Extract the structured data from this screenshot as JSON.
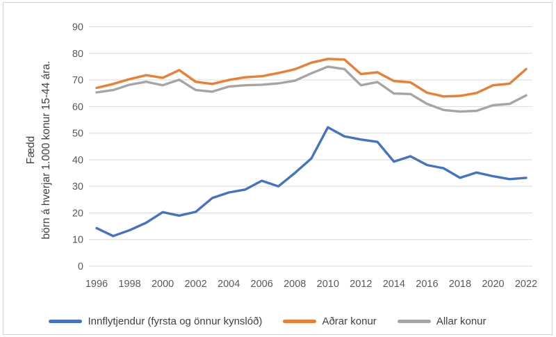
{
  "chart_data": {
    "type": "line",
    "title": "",
    "ylabel_line1": "Fædd",
    "ylabel_line2": "börn á hverjar 1.000 konur 15-44 ára.",
    "xlabel": "",
    "x": [
      1996,
      1997,
      1998,
      1999,
      2000,
      2001,
      2002,
      2003,
      2004,
      2005,
      2006,
      2007,
      2008,
      2009,
      2010,
      2011,
      2012,
      2013,
      2014,
      2015,
      2016,
      2017,
      2018,
      2019,
      2020,
      2021,
      2022
    ],
    "x_tick_labels": [
      "1996",
      "1998",
      "2000",
      "2002",
      "2004",
      "2006",
      "2008",
      "2010",
      "2012",
      "2014",
      "2016",
      "2018",
      "2020",
      "2022"
    ],
    "y_ticks": [
      0,
      10,
      20,
      30,
      40,
      50,
      60,
      70,
      80,
      90
    ],
    "ylim": [
      0,
      90
    ],
    "grid": "horizontal-only",
    "legend_position": "bottom",
    "series": [
      {
        "name": "Innflytjendur (fyrsta og önnur kynslóð)",
        "color": "#4472C4",
        "values": [
          14.3,
          11.3,
          13.5,
          16.3,
          20.3,
          19.0,
          20.4,
          25.6,
          27.7,
          28.8,
          32.1,
          30.0,
          35.0,
          40.5,
          52.2,
          48.8,
          47.6,
          46.7,
          39.3,
          41.3,
          38.0,
          36.8,
          33.2,
          35.2,
          33.8,
          32.7,
          33.2
        ]
      },
      {
        "name": "Aðrar konur",
        "color": "#ED7D31",
        "values": [
          67.0,
          68.5,
          70.3,
          71.8,
          70.8,
          73.7,
          69.3,
          68.5,
          70.0,
          71.0,
          71.4,
          72.6,
          74.0,
          76.5,
          77.9,
          77.7,
          72.2,
          72.9,
          69.6,
          69.1,
          65.2,
          63.8,
          64.0,
          65.1,
          68.0,
          68.6,
          74.1
        ]
      },
      {
        "name": "Allar konur",
        "color": "#A5A5A5",
        "values": [
          65.3,
          66.2,
          68.2,
          69.3,
          68.0,
          70.1,
          66.2,
          65.6,
          67.5,
          68.0,
          68.2,
          68.7,
          69.7,
          72.5,
          75.0,
          74.1,
          68.0,
          69.2,
          64.9,
          64.7,
          61.0,
          58.7,
          58.1,
          58.4,
          60.5,
          61.0,
          64.2
        ]
      }
    ],
    "styles": {
      "gridline_color": "#d9d9d9",
      "tick_label_color": "#595959",
      "line_width": 3.4
    }
  }
}
